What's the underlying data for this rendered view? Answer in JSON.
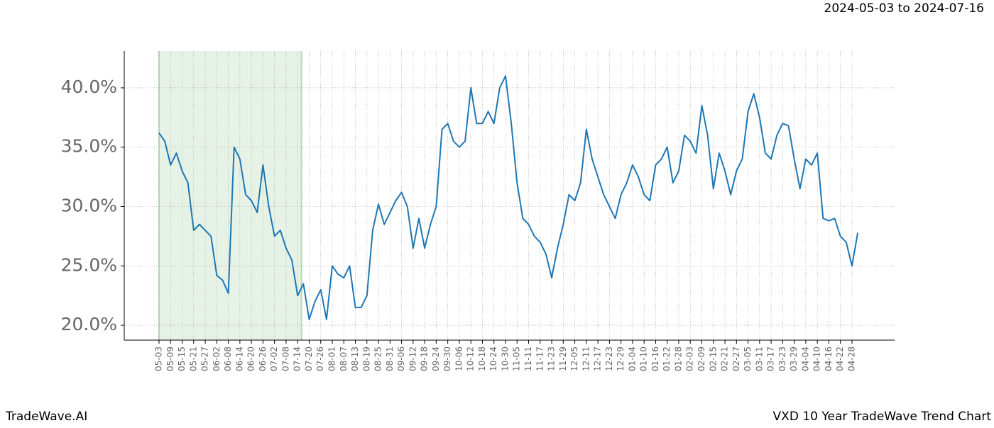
{
  "chart_data": {
    "type": "line",
    "date_range": "2024-05-03 to 2024-07-16",
    "footer_left": "TradeWave.AI",
    "footer_right": "VXD 10 Year TradeWave Trend Chart",
    "color": "#1f77b4",
    "shade_color": "#e6f2e6",
    "grid": true,
    "categories": [
      "05-03",
      null,
      "05-09",
      null,
      "05-15",
      null,
      "05-21",
      null,
      "05-27",
      null,
      "06-02",
      null,
      "06-08",
      null,
      "06-14",
      null,
      "06-20",
      null,
      "06-26",
      null,
      "07-02",
      null,
      "07-08",
      null,
      "07-14",
      null,
      "07-20",
      null,
      "07-26",
      null,
      "08-01",
      null,
      "08-07",
      null,
      "08-13",
      null,
      "08-19",
      null,
      "08-25",
      null,
      "08-31",
      null,
      "09-06",
      null,
      "09-12",
      null,
      "09-18",
      null,
      "09-24",
      null,
      "09-30",
      null,
      "10-06",
      null,
      "10-12",
      null,
      "10-18",
      null,
      "10-24",
      null,
      "10-30",
      null,
      "11-05",
      null,
      "11-11",
      null,
      "11-17",
      null,
      "11-23",
      null,
      "11-29",
      null,
      "12-05",
      null,
      "12-11",
      null,
      "12-17",
      null,
      "12-23",
      null,
      "12-29",
      null,
      "01-04",
      null,
      "01-10",
      null,
      "01-16",
      null,
      "01-22",
      null,
      "01-28",
      null,
      "02-03",
      null,
      "02-09",
      null,
      "02-15",
      null,
      "02-21",
      null,
      "02-27",
      null,
      "03-05",
      null,
      "03-11",
      null,
      "03-17",
      null,
      "03-23",
      null,
      "03-29",
      null,
      "04-04",
      null,
      "04-10",
      null,
      "04-16",
      null,
      "04-22",
      null,
      "04-28",
      null
    ],
    "values": [
      36.2,
      35.5,
      33.5,
      34.5,
      33,
      32,
      28,
      28.5,
      28,
      27.5,
      24.2,
      23.8,
      22.7,
      35,
      34,
      31,
      30.5,
      29.5,
      33.5,
      30,
      27.5,
      28,
      26.5,
      25.5,
      22.5,
      23.5,
      20.5,
      22,
      23,
      20.5,
      25,
      24.3,
      24,
      25,
      21.5,
      21.5,
      22.5,
      28,
      30.2,
      28.5,
      29.5,
      30.5,
      31.2,
      30,
      26.5,
      29,
      26.5,
      28.5,
      30,
      36.5,
      37,
      35.5,
      35,
      35.5,
      40,
      37,
      37,
      38,
      37,
      40,
      41,
      37,
      32,
      29,
      28.5,
      27.5,
      27,
      26,
      24,
      26.5,
      28.5,
      31,
      30.5,
      32,
      36.5,
      34,
      32.5,
      31,
      30,
      29,
      31,
      32,
      33.5,
      32.5,
      31,
      30.5,
      33.5,
      34,
      35,
      32,
      33,
      36,
      35.5,
      34.5,
      38.5,
      36,
      31.5,
      34.5,
      33,
      31,
      33,
      34,
      38,
      39.5,
      37.5,
      34.5,
      34,
      36,
      37,
      36.8,
      34,
      31.5,
      34,
      33.5,
      34.5,
      29,
      28.8,
      29,
      27.5,
      27,
      25,
      27.8
    ],
    "ylim": [
      18.75,
      43.1
    ],
    "yticks": [
      {
        "value": 20,
        "label": "20.0%"
      },
      {
        "value": 25,
        "label": "25.0%"
      },
      {
        "value": 30,
        "label": "30.0%"
      },
      {
        "value": 35,
        "label": "35.0%"
      },
      {
        "value": 40,
        "label": "40.0%"
      }
    ]
  }
}
